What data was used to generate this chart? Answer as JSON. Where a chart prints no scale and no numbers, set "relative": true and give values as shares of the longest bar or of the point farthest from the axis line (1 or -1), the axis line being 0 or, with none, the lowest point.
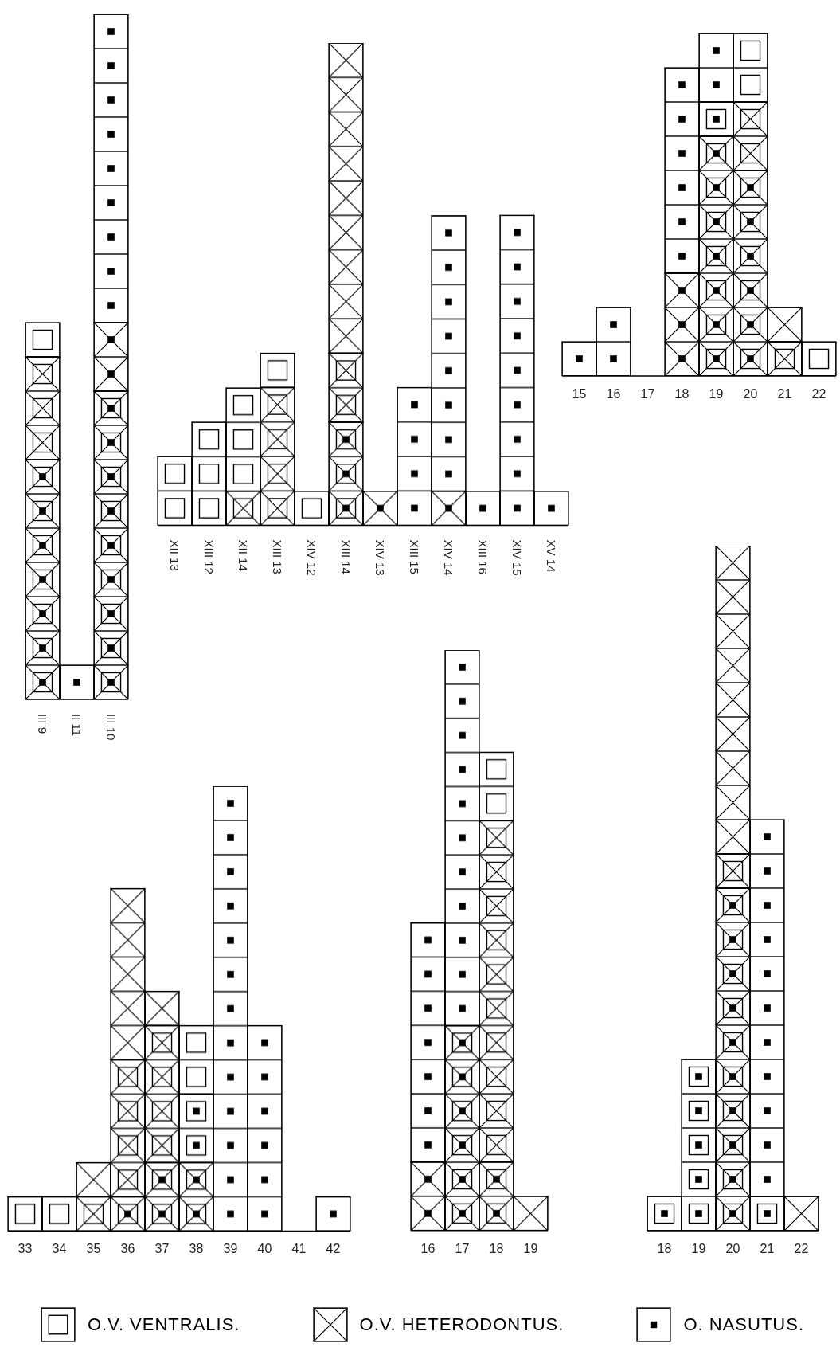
{
  "chart_data": [
    {
      "type": "bar",
      "stacked": true,
      "relative": true,
      "categories": [
        "III 9",
        "II 11",
        "III 10"
      ],
      "series": [
        {
          "color": "#000000",
          "values": [
            0.35,
            0,
            0.45
          ]
        },
        {
          "color": "#000000",
          "values": [
            0,
            0,
            0.1
          ]
        },
        {
          "color": "#000000",
          "values": [
            0,
            0,
            0
          ]
        },
        {
          "color": "#000000",
          "values": [
            0.15,
            0,
            0
          ]
        },
        {
          "color": "#000000",
          "values": [
            0,
            0,
            0
          ]
        },
        {
          "color": "#000000",
          "values": [
            0.05,
            0,
            0
          ]
        },
        {
          "color": "#000000",
          "values": [
            0,
            0.05,
            0.45
          ]
        }
      ]
    },
    {
      "type": "bar",
      "stacked": true,
      "relative": true,
      "categories": [
        "XII 13",
        "XIII 12",
        "XII 14",
        "XIII 13",
        "XIV 12",
        "XIII 14",
        "XIV 13",
        "XIII 15",
        "XIV 14",
        "XIII 16",
        "XIV 15",
        "XV 14"
      ],
      "series": [
        {
          "color": "#000000",
          "values": [
            0,
            0,
            0,
            0,
            0,
            0.214,
            0,
            0,
            0,
            0,
            0,
            0
          ]
        },
        {
          "color": "#000000",
          "values": [
            0,
            0,
            0,
            0,
            0,
            0,
            0.071,
            0,
            0.071,
            0,
            0,
            0
          ]
        },
        {
          "color": "#000000",
          "values": [
            0,
            0,
            0,
            0,
            0,
            0,
            0,
            0,
            0,
            0,
            0,
            0
          ]
        },
        {
          "color": "#000000",
          "values": [
            0,
            0,
            0.071,
            0.286,
            0,
            0.143,
            0,
            0,
            0,
            0,
            0,
            0
          ]
        },
        {
          "color": "#000000",
          "values": [
            0,
            0,
            0,
            0,
            0,
            0.643,
            0,
            0,
            0,
            0,
            0,
            0
          ]
        },
        {
          "color": "#000000",
          "values": [
            0.143,
            0.214,
            0.214,
            0.071,
            0.071,
            0,
            0,
            0,
            0,
            0,
            0,
            0
          ]
        },
        {
          "color": "#000000",
          "values": [
            0,
            0,
            0,
            0,
            0,
            0,
            0,
            0.286,
            0.571,
            0.071,
            0.643,
            0.071
          ]
        }
      ]
    },
    {
      "type": "bar",
      "stacked": true,
      "relative": true,
      "categories": [
        "15",
        "16",
        "17",
        "18",
        "19",
        "20",
        "21",
        "22"
      ],
      "series": [
        {
          "color": "#000000",
          "values": [
            0,
            0,
            0,
            0,
            0.7,
            0.6,
            0,
            0
          ]
        },
        {
          "color": "#000000",
          "values": [
            0,
            0,
            0,
            0.3,
            0,
            0,
            0,
            0
          ]
        },
        {
          "color": "#000000",
          "values": [
            0,
            0,
            0,
            0,
            0.1,
            0,
            0,
            0
          ]
        },
        {
          "color": "#000000",
          "values": [
            0,
            0,
            0,
            0,
            0,
            0.2,
            0.1,
            0
          ]
        },
        {
          "color": "#000000",
          "values": [
            0,
            0,
            0,
            0,
            0,
            0,
            0.1,
            0
          ]
        },
        {
          "color": "#000000",
          "values": [
            0,
            0,
            0,
            0,
            0,
            0.2,
            0,
            0.1
          ]
        },
        {
          "color": "#000000",
          "values": [
            0.1,
            0.2,
            0,
            0.6,
            0.2,
            0,
            0,
            0
          ]
        }
      ]
    },
    {
      "type": "bar",
      "stacked": true,
      "relative": true,
      "legend": "bottom",
      "categories": [
        "33",
        "34",
        "35",
        "36",
        "37",
        "38",
        "39",
        "40",
        "41",
        "42"
      ],
      "series": [
        {
          "color": "#000000",
          "values": [
            0,
            0,
            0,
            0.077,
            0.154,
            0.154,
            0,
            0,
            0,
            0
          ]
        },
        {
          "color": "#000000",
          "values": [
            0,
            0,
            0,
            0,
            0,
            0,
            0,
            0,
            0,
            0
          ]
        },
        {
          "color": "#000000",
          "values": [
            0,
            0,
            0,
            0,
            0,
            0.154,
            0,
            0,
            0,
            0
          ]
        },
        {
          "color": "#000000",
          "values": [
            0,
            0,
            0.077,
            0.308,
            0.308,
            0,
            0,
            0,
            0,
            0
          ]
        },
        {
          "name": "O.V. HETERODONTUS.",
          "color": "#000000",
          "values": [
            0,
            0,
            0.077,
            0.385,
            0.077,
            0,
            0,
            0,
            0,
            0
          ]
        },
        {
          "name": "O.V. VENTRALIS.",
          "color": "#000000",
          "values": [
            0.077,
            0.077,
            0,
            0,
            0,
            0.154,
            0,
            0,
            0,
            0
          ]
        },
        {
          "name": "O. NASUTUS.",
          "color": "#000000",
          "values": [
            0,
            0,
            0,
            0,
            0,
            0,
            1,
            0.462,
            0,
            0.077
          ]
        }
      ]
    },
    {
      "type": "bar",
      "stacked": true,
      "relative": true,
      "categories": [
        "16",
        "17",
        "18",
        "19"
      ],
      "series": [
        {
          "color": "#000000",
          "values": [
            0,
            0.353,
            0.118,
            0
          ]
        },
        {
          "color": "#000000",
          "values": [
            0.118,
            0,
            0,
            0
          ]
        },
        {
          "color": "#000000",
          "values": [
            0,
            0,
            0,
            0
          ]
        },
        {
          "color": "#000000",
          "values": [
            0,
            0,
            0.588,
            0
          ]
        },
        {
          "color": "#000000",
          "values": [
            0,
            0,
            0,
            0.059
          ]
        },
        {
          "color": "#000000",
          "values": [
            0,
            0,
            0.118,
            0
          ]
        },
        {
          "color": "#000000",
          "values": [
            0.412,
            0.647,
            0,
            0
          ]
        }
      ]
    },
    {
      "type": "bar",
      "stacked": true,
      "relative": true,
      "categories": [
        "18",
        "19",
        "20",
        "21",
        "22"
      ],
      "series": [
        {
          "color": "#000000",
          "values": [
            0,
            0,
            0.5,
            0,
            0
          ]
        },
        {
          "color": "#000000",
          "values": [
            0,
            0,
            0,
            0,
            0
          ]
        },
        {
          "color": "#000000",
          "values": [
            0.05,
            0.25,
            0,
            0.05,
            0
          ]
        },
        {
          "color": "#000000",
          "values": [
            0,
            0,
            0.05,
            0,
            0
          ]
        },
        {
          "color": "#000000",
          "values": [
            0,
            0,
            0.45,
            0,
            0.05
          ]
        },
        {
          "color": "#000000",
          "values": [
            0,
            0,
            0,
            0,
            0
          ]
        },
        {
          "color": "#000000",
          "values": [
            0,
            0,
            0,
            0.55,
            0
          ]
        }
      ]
    }
  ]
}
